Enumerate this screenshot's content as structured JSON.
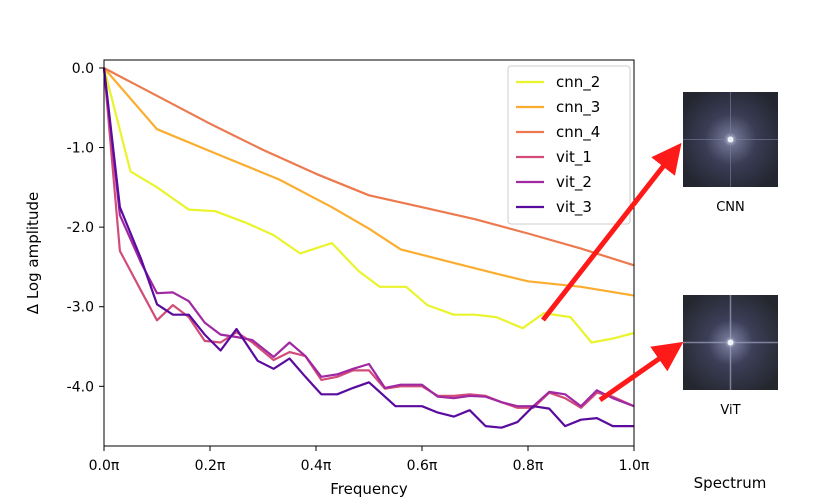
{
  "chart_data": {
    "type": "line",
    "xlabel": "Frequency",
    "ylabel": "Δ Log amplitude",
    "xlim": [
      0,
      1
    ],
    "ylim": [
      -4.75,
      0.1
    ],
    "x_ticks": [
      0,
      0.2,
      0.4,
      0.6,
      0.8,
      1.0
    ],
    "x_tick_labels": [
      "0.0π",
      "0.2π",
      "0.4π",
      "0.6π",
      "0.8π",
      "1.0π"
    ],
    "y_ticks": [
      0,
      -1,
      -2,
      -3,
      -4
    ],
    "y_tick_labels": [
      "0.0",
      "-1.0",
      "-2.0",
      "-3.0",
      "-4.0"
    ],
    "legend_position": "top-right",
    "series": [
      {
        "name": "cnn_2",
        "color": "#e9f42d",
        "x": [
          0,
          0.05,
          0.1,
          0.16,
          0.21,
          0.27,
          0.32,
          0.37,
          0.43,
          0.48,
          0.52,
          0.57,
          0.61,
          0.66,
          0.7,
          0.74,
          0.79,
          0.83,
          0.88,
          0.92,
          0.96,
          1.0
        ],
        "values": [
          0,
          -1.3,
          -1.5,
          -1.78,
          -1.8,
          -1.95,
          -2.1,
          -2.33,
          -2.2,
          -2.55,
          -2.75,
          -2.75,
          -2.98,
          -3.1,
          -3.1,
          -3.13,
          -3.27,
          -3.08,
          -3.13,
          -3.45,
          -3.4,
          -3.33
        ]
      },
      {
        "name": "cnn_3",
        "color": "#fbad2f",
        "x": [
          0,
          0.1,
          0.22,
          0.33,
          0.43,
          0.5,
          0.56,
          0.66,
          0.75,
          0.8,
          0.9,
          1.0
        ],
        "values": [
          0,
          -0.77,
          -1.1,
          -1.4,
          -1.75,
          -2.02,
          -2.28,
          -2.45,
          -2.6,
          -2.68,
          -2.75,
          -2.86
        ]
      },
      {
        "name": "cnn_4",
        "color": "#ec7a4e",
        "x": [
          0,
          0.1,
          0.2,
          0.3,
          0.4,
          0.5,
          0.6,
          0.7,
          0.8,
          0.9,
          1.0
        ],
        "values": [
          0,
          -0.35,
          -0.7,
          -1.03,
          -1.33,
          -1.6,
          -1.75,
          -1.9,
          -2.08,
          -2.27,
          -2.48
        ]
      },
      {
        "name": "vit_1",
        "color": "#d24c78",
        "x": [
          0,
          0.03,
          0.07,
          0.1,
          0.13,
          0.16,
          0.19,
          0.22,
          0.25,
          0.28,
          0.32,
          0.35,
          0.38,
          0.41,
          0.44,
          0.47,
          0.5,
          0.53,
          0.56,
          0.6,
          0.63,
          0.66,
          0.69,
          0.72,
          0.75,
          0.78,
          0.81,
          0.84,
          0.87,
          0.9,
          0.93,
          0.96,
          1.0
        ],
        "values": [
          0,
          -2.3,
          -2.8,
          -3.17,
          -2.98,
          -3.13,
          -3.43,
          -3.45,
          -3.32,
          -3.45,
          -3.67,
          -3.57,
          -3.62,
          -3.92,
          -3.88,
          -3.8,
          -3.8,
          -4.03,
          -4.0,
          -4.0,
          -4.12,
          -4.12,
          -4.1,
          -4.12,
          -4.2,
          -4.27,
          -4.27,
          -4.08,
          -4.15,
          -4.27,
          -4.08,
          -4.13,
          -4.25
        ]
      },
      {
        "name": "vit_2",
        "color": "#a028a2",
        "x": [
          0,
          0.03,
          0.07,
          0.1,
          0.13,
          0.16,
          0.19,
          0.22,
          0.25,
          0.28,
          0.32,
          0.35,
          0.38,
          0.41,
          0.44,
          0.47,
          0.5,
          0.53,
          0.56,
          0.6,
          0.63,
          0.66,
          0.69,
          0.72,
          0.75,
          0.78,
          0.81,
          0.84,
          0.87,
          0.9,
          0.93,
          0.96,
          1.0
        ],
        "values": [
          0,
          -1.85,
          -2.45,
          -2.83,
          -2.82,
          -2.93,
          -3.2,
          -3.35,
          -3.38,
          -3.42,
          -3.63,
          -3.45,
          -3.62,
          -3.88,
          -3.85,
          -3.78,
          -3.72,
          -4.02,
          -3.98,
          -3.98,
          -4.13,
          -4.15,
          -4.12,
          -4.13,
          -4.2,
          -4.25,
          -4.25,
          -4.07,
          -4.1,
          -4.25,
          -4.05,
          -4.15,
          -4.25
        ]
      },
      {
        "name": "vit_3",
        "color": "#5a0b9e",
        "x": [
          0,
          0.03,
          0.07,
          0.1,
          0.13,
          0.16,
          0.19,
          0.22,
          0.25,
          0.29,
          0.32,
          0.35,
          0.38,
          0.41,
          0.44,
          0.47,
          0.5,
          0.55,
          0.6,
          0.63,
          0.66,
          0.69,
          0.72,
          0.75,
          0.78,
          0.81,
          0.84,
          0.87,
          0.9,
          0.93,
          0.96,
          1.0
        ],
        "values": [
          0,
          -1.75,
          -2.4,
          -2.97,
          -3.1,
          -3.1,
          -3.35,
          -3.55,
          -3.28,
          -3.68,
          -3.78,
          -3.65,
          -3.88,
          -4.1,
          -4.1,
          -4.02,
          -3.95,
          -4.25,
          -4.25,
          -4.33,
          -4.38,
          -4.3,
          -4.5,
          -4.52,
          -4.45,
          -4.25,
          -4.28,
          -4.5,
          -4.42,
          -4.4,
          -4.5,
          -4.5
        ]
      }
    ]
  },
  "side": {
    "cnn_label": "CNN",
    "vit_label": "ViT",
    "spectrum_label": "Spectrum"
  }
}
